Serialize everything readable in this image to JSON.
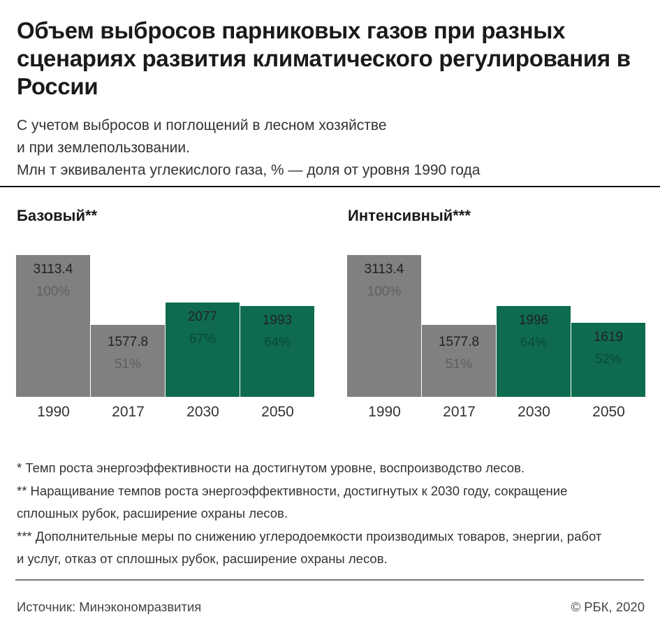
{
  "title": "Объем выбросов парниковых газов при разных сценариях развития климатического регулирования в России",
  "subtitle_lines": [
    "С учетом выбросов и поглощений в лесном хозяйстве",
    "и при землепользовании.",
    "Млн т эквивалента углекислого газа, % — доля от уровня 1990 года"
  ],
  "colors": {
    "historical": "#808080",
    "forecast": "#0e6b4f",
    "historical_pct": "#5f5f5f",
    "forecast_pct": "#0a4a37"
  },
  "chart_data": [
    {
      "type": "bar",
      "title": "Базовый**",
      "categories": [
        "1990",
        "2017",
        "2030",
        "2050"
      ],
      "values": [
        3113.4,
        1577.8,
        2077,
        1993
      ],
      "value_labels": [
        "3113.4",
        "1577.8",
        "2077",
        "1993"
      ],
      "percent_labels": [
        "100%",
        "51%",
        "67%",
        "64%"
      ],
      "kind": [
        "historical",
        "historical",
        "forecast",
        "forecast"
      ],
      "ylim": [
        0,
        3113.4
      ]
    },
    {
      "type": "bar",
      "title": "Интенсивный***",
      "categories": [
        "1990",
        "2017",
        "2030",
        "2050"
      ],
      "values": [
        3113.4,
        1577.8,
        1996,
        1619
      ],
      "value_labels": [
        "3113.4",
        "1577.8",
        "1996",
        "1619"
      ],
      "percent_labels": [
        "100%",
        "51%",
        "64%",
        "52%"
      ],
      "kind": [
        "historical",
        "historical",
        "forecast",
        "forecast"
      ],
      "ylim": [
        0,
        3113.4
      ]
    }
  ],
  "notes": [
    "* Темп роста энергоэффективности на достигнутом уровне, воспроизводство лесов.",
    "** Наращивание темпов роста энергоэффективности, достигнутых к 2030 году, сокращение сплошных рубок, расширение охраны лесов.",
    "*** Дополнительные меры по снижению углеродоемкости производимых товаров, энергии, работ и услуг, отказ от сплошных рубок, расширение охраны лесов."
  ],
  "source": "Источник: Минэкономразвития",
  "copyright": "© РБК, 2020"
}
